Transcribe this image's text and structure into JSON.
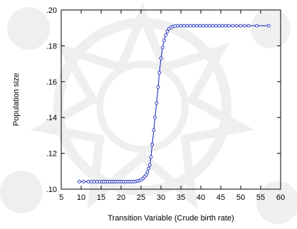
{
  "chart_data": {
    "type": "line",
    "title": "",
    "xlabel": "Transition Variable (Crude birth rate)",
    "ylabel": "Population size",
    "xlim": [
      5,
      60
    ],
    "ylim": [
      0.1,
      0.2
    ],
    "xticks": [
      5,
      10,
      15,
      20,
      25,
      30,
      35,
      40,
      45,
      50,
      55,
      60
    ],
    "xtick_labels": [
      "5",
      "10",
      "15",
      "20",
      "25",
      "30",
      "35",
      "40",
      "45",
      "50",
      "55",
      "60"
    ],
    "yticks": [
      0.1,
      0.12,
      0.14,
      0.16,
      0.18,
      0.2
    ],
    "ytick_labels": [
      ".10",
      ".12",
      ".14",
      ".16",
      ".18",
      ".20"
    ],
    "grid": false,
    "legend": "none",
    "line_color": "#1f2fbf",
    "marker": "hollow-circle",
    "series": [
      {
        "x": [
          9.5,
          10.6,
          11.8,
          12.5,
          13.2,
          13.9,
          14.6,
          15.2,
          15.7,
          16.2,
          16.7,
          17.2,
          17.7,
          18.1,
          18.6,
          19.1,
          19.6,
          20.1,
          20.6,
          21.1,
          21.6,
          22.1,
          22.6,
          23.1,
          23.6,
          24.1,
          24.6,
          25.0,
          25.5,
          25.9,
          26.3,
          26.6,
          26.9,
          27.2,
          27.5,
          27.8,
          28.2,
          28.5,
          28.9,
          29.3,
          29.6,
          30.0,
          30.4,
          30.8,
          31.2,
          31.6,
          32.0,
          32.5,
          33.0,
          33.5,
          34.2,
          35.0,
          35.8,
          36.6,
          37.4,
          38.2,
          39.0,
          39.8,
          40.6,
          41.4,
          42.2,
          43.0,
          43.8,
          44.6,
          45.4,
          46.2,
          47.0,
          48.0,
          49.0,
          50.0,
          51.0,
          52.0,
          54.0,
          57.0
        ],
        "y": [
          0.1042,
          0.1042,
          0.1042,
          0.1042,
          0.1042,
          0.1042,
          0.1042,
          0.1042,
          0.1042,
          0.1042,
          0.1042,
          0.1042,
          0.1042,
          0.1042,
          0.1042,
          0.1042,
          0.1042,
          0.1042,
          0.1042,
          0.1042,
          0.1042,
          0.1042,
          0.1042,
          0.1042,
          0.1043,
          0.1045,
          0.1048,
          0.1052,
          0.106,
          0.107,
          0.108,
          0.1095,
          0.1115,
          0.1135,
          0.118,
          0.125,
          0.133,
          0.14,
          0.148,
          0.157,
          0.165,
          0.173,
          0.179,
          0.183,
          0.186,
          0.188,
          0.1895,
          0.1903,
          0.1908,
          0.191,
          0.1912,
          0.1912,
          0.1912,
          0.1912,
          0.1912,
          0.1912,
          0.1912,
          0.1912,
          0.1912,
          0.1912,
          0.1912,
          0.1912,
          0.1912,
          0.1912,
          0.1912,
          0.1912,
          0.1912,
          0.1912,
          0.1912,
          0.1912,
          0.1912,
          0.1912,
          0.1912,
          0.1912
        ]
      }
    ]
  }
}
